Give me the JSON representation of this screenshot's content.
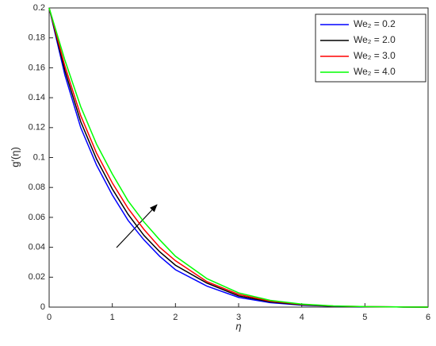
{
  "chart_data": {
    "type": "line",
    "x_label": "η",
    "y_label": "g′(η)",
    "x": [
      0,
      0.25,
      0.5,
      0.75,
      1,
      1.25,
      1.5,
      1.75,
      2,
      2.5,
      3,
      3.5,
      4,
      4.5,
      5,
      5.5,
      6
    ],
    "series": [
      {
        "name": "We₂ = 0.2",
        "color": "#0000ff",
        "values": [
          0.2,
          0.155,
          0.12,
          0.095,
          0.075,
          0.058,
          0.045,
          0.034,
          0.025,
          0.014,
          0.0065,
          0.003,
          0.0013,
          0.0005,
          0.0002,
          0.0001,
          0
        ]
      },
      {
        "name": "We₂ = 2.0",
        "color": "#000000",
        "values": [
          0.2,
          0.158,
          0.124,
          0.099,
          0.079,
          0.062,
          0.048,
          0.037,
          0.028,
          0.016,
          0.0075,
          0.0035,
          0.0015,
          0.0006,
          0.0002,
          0.0001,
          0
        ]
      },
      {
        "name": "We₂ = 3.0",
        "color": "#ff0000",
        "values": [
          0.2,
          0.161,
          0.128,
          0.103,
          0.083,
          0.066,
          0.052,
          0.04,
          0.031,
          0.017,
          0.0085,
          0.004,
          0.0018,
          0.0007,
          0.0003,
          0.0001,
          0
        ]
      },
      {
        "name": "We₂ = 4.0",
        "color": "#00ff00",
        "values": [
          0.2,
          0.165,
          0.134,
          0.109,
          0.089,
          0.071,
          0.057,
          0.045,
          0.034,
          0.019,
          0.0095,
          0.0045,
          0.002,
          0.0008,
          0.0003,
          0.0001,
          0
        ]
      }
    ],
    "xlim": [
      0,
      6
    ],
    "xticks": [
      0,
      1,
      2,
      3,
      4,
      5,
      6
    ],
    "ylim": [
      0,
      0.2
    ],
    "yticks": [
      0,
      0.02,
      0.04,
      0.06,
      0.08,
      0.1,
      0.12,
      0.14,
      0.16,
      0.18,
      0.2
    ],
    "grid": false,
    "legend": "northeast"
  }
}
